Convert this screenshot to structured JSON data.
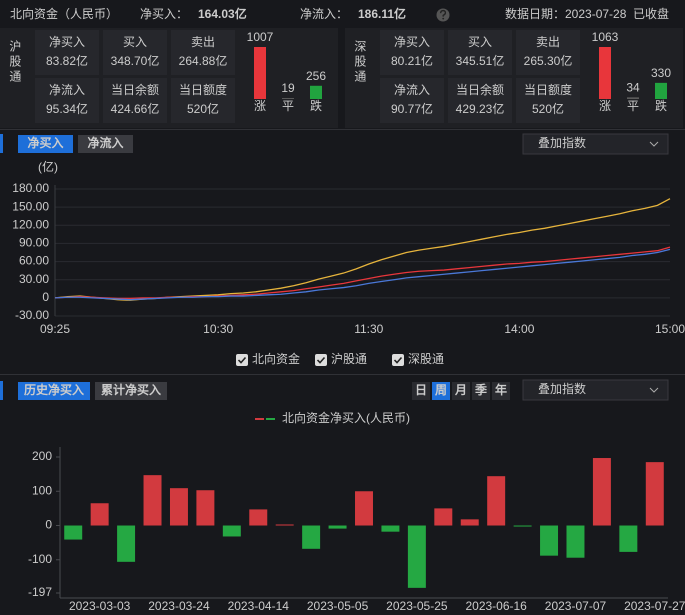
{
  "header": {
    "title": "北向资金（人民币）",
    "net_buy_label": "净买入：",
    "net_buy": "164.03亿",
    "net_inflow_label": "净流入：",
    "net_inflow": "186.11亿",
    "date": "数据日期：2023-07-28",
    "status": "已收盘",
    "value_color": "#e84a4a"
  },
  "panels": [
    {
      "name": "沪股通",
      "stats": [
        {
          "label": "净买入",
          "value": "83.82亿",
          "color": "#e84a4a"
        },
        {
          "label": "买入",
          "value": "348.70亿"
        },
        {
          "label": "卖出",
          "value": "264.88亿"
        },
        {
          "label": "净流入",
          "value": "95.34亿",
          "color": "#e84a4a"
        },
        {
          "label": "当日余额",
          "value": "424.66亿"
        },
        {
          "label": "当日额度",
          "value": "520亿"
        }
      ]
    },
    {
      "name": "深股通",
      "stats": [
        {
          "label": "净买入",
          "value": "80.21亿",
          "color": "#e84a4a"
        },
        {
          "label": "买入",
          "value": "345.51亿"
        },
        {
          "label": "卖出",
          "value": "265.30亿"
        },
        {
          "label": "净流入",
          "value": "90.77亿",
          "color": "#e84a4a"
        },
        {
          "label": "当日余额",
          "value": "429.23亿"
        },
        {
          "label": "当日额度",
          "value": "520亿"
        }
      ]
    }
  ],
  "intraday_controls": {
    "tabs": [
      "净买入",
      "净流入"
    ],
    "active": 0,
    "overlay": "叠加指数"
  },
  "history_controls": {
    "tabs": [
      "历史净买入",
      "累计净买入"
    ],
    "active": 0,
    "periods": [
      "日",
      "周",
      "月",
      "季",
      "年"
    ],
    "active_period": 1,
    "overlay": "叠加指数"
  },
  "chart_data": [
    {
      "type": "breadth",
      "categories": [
        "涨",
        "平",
        "跌"
      ],
      "values": [
        1007,
        19,
        256
      ],
      "colors": [
        "#e8363b",
        "#5a5a5a",
        "#21a43f"
      ]
    },
    {
      "type": "breadth",
      "categories": [
        "涨",
        "平",
        "跌"
      ],
      "values": [
        1063,
        34,
        330
      ],
      "colors": [
        "#e8363b",
        "#5a5a5a",
        "#21a43f"
      ]
    },
    {
      "type": "line",
      "unit": "(亿)",
      "categories": [
        "09:25",
        null,
        null,
        null,
        null,
        null,
        null,
        null,
        null,
        null,
        null,
        null,
        null,
        "10:30",
        null,
        null,
        null,
        null,
        null,
        null,
        null,
        null,
        null,
        null,
        null,
        "11:30",
        null,
        null,
        null,
        null,
        null,
        null,
        null,
        null,
        null,
        null,
        null,
        "14:00",
        null,
        null,
        null,
        null,
        null,
        null,
        null,
        null,
        null,
        null,
        null,
        "15:00"
      ],
      "series": [
        {
          "name": "北向资金",
          "color": "#e6b43c",
          "values": [
            0,
            2,
            3,
            1,
            -1,
            -3,
            -4,
            -2,
            -1,
            1,
            2,
            3,
            4,
            5,
            7,
            8,
            10,
            13,
            16,
            20,
            25,
            31,
            36,
            41,
            48,
            56,
            63,
            69,
            75,
            79,
            82,
            85,
            89,
            93,
            97,
            101,
            105,
            108,
            112,
            115,
            119,
            123,
            127,
            131,
            135,
            139,
            144,
            148,
            153,
            164.03
          ]
        },
        {
          "name": "沪股通",
          "color": "#e8363b",
          "values": [
            0,
            1,
            2,
            1,
            0,
            -1,
            -1,
            0,
            0,
            1,
            1,
            2,
            2,
            3,
            4,
            5,
            6,
            8,
            10,
            12,
            15,
            18,
            21,
            24,
            28,
            32,
            36,
            39,
            42,
            44,
            45,
            46,
            48,
            50,
            52,
            54,
            56,
            57,
            59,
            60,
            62,
            64,
            66,
            68,
            70,
            72,
            74,
            76,
            78,
            83.82
          ]
        },
        {
          "name": "深股通",
          "color": "#4a78d8",
          "values": [
            0,
            1,
            1,
            0,
            -1,
            -2,
            -3,
            -2,
            -1,
            0,
            1,
            1,
            2,
            2,
            3,
            3,
            4,
            5,
            6,
            8,
            10,
            13,
            15,
            17,
            20,
            24,
            27,
            30,
            33,
            35,
            37,
            39,
            41,
            43,
            45,
            47,
            49,
            51,
            53,
            55,
            57,
            59,
            61,
            63,
            65,
            67,
            70,
            72,
            75,
            80.21
          ]
        }
      ],
      "ylim": [
        -30,
        180
      ],
      "yticks": [
        {
          "value": 180,
          "label": "180.00"
        },
        {
          "value": 150,
          "label": "150.00"
        },
        {
          "value": 120,
          "label": "120.00"
        },
        {
          "value": 90,
          "label": "90.00"
        },
        {
          "value": 60,
          "label": "60.00"
        },
        {
          "value": 30,
          "label": "30.00"
        },
        0,
        {
          "value": -30,
          "label": "-30.00"
        }
      ],
      "tick_colors": {
        "positive": "#e8363b",
        "zero": "#cccccc",
        "negative": "#21a43f"
      },
      "grid": true
    },
    {
      "type": "bar",
      "legend": "北向资金净买入(人民币)",
      "categories": [
        null,
        "2023-03-03",
        null,
        null,
        "2023-03-24",
        null,
        null,
        "2023-04-14",
        null,
        null,
        "2023-05-05",
        null,
        null,
        "2023-05-25",
        null,
        null,
        "2023-06-16",
        null,
        null,
        "2023-07-07",
        null,
        null,
        "2023-07-27"
      ],
      "values": [
        -41,
        65,
        -106,
        147,
        109,
        103,
        -32,
        47,
        3,
        -68,
        -9,
        100,
        -18,
        -182,
        50,
        18,
        144,
        -3,
        -88,
        -94,
        197,
        -77,
        185
      ],
      "positive_color": "#d23a3f",
      "negative_color": "#25a843",
      "ylim": [
        -197,
        200
      ],
      "yticks": [
        200,
        100,
        0,
        -100,
        -197
      ]
    }
  ]
}
